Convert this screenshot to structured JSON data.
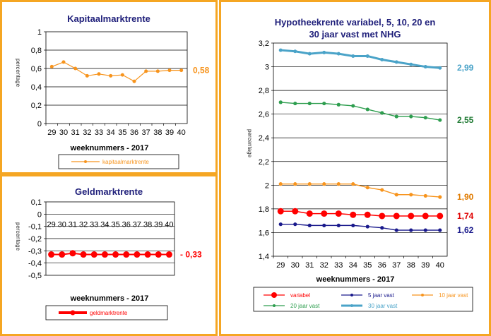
{
  "chart_data": [
    {
      "id": "kap",
      "type": "line",
      "title": "Kapitaalmarktrente",
      "ylabel": "percentage",
      "xlabel": "weeknummers - 2017",
      "categories": [
        "29",
        "30",
        "31",
        "32",
        "33",
        "34",
        "35",
        "36",
        "37",
        "38",
        "39",
        "40"
      ],
      "ylim": [
        0,
        1
      ],
      "yticks": [
        "0",
        "0,2",
        "0,4",
        "0,6",
        "0,8",
        "1"
      ],
      "grid": true,
      "series": [
        {
          "name": "kapitaalmarktrente",
          "color": "#f7941d",
          "values": [
            0.62,
            0.67,
            0.6,
            0.52,
            0.54,
            0.52,
            0.53,
            0.46,
            0.57,
            0.57,
            0.58,
            0.58
          ],
          "end_label": "0,58"
        }
      ]
    },
    {
      "id": "geld",
      "type": "line",
      "title": "Geldmarktrente",
      "ylabel": "percentage",
      "xlabel": "weeknummers - 2017",
      "categories": [
        "29",
        "30",
        "31",
        "32",
        "33",
        "34",
        "35",
        "36",
        "37",
        "38",
        "39",
        "40"
      ],
      "ylim": [
        -0.5,
        0.1
      ],
      "yticks": [
        "-0,5",
        "-0,4",
        "-0,3",
        "-0,2",
        "-0,1",
        "0",
        "0,1"
      ],
      "grid": true,
      "series": [
        {
          "name": "geldmarktrente",
          "color": "#ff0000",
          "values": [
            -0.33,
            -0.33,
            -0.32,
            -0.33,
            -0.33,
            -0.33,
            -0.33,
            -0.33,
            -0.33,
            -0.33,
            -0.33,
            -0.33
          ],
          "end_label": "- 0,33"
        }
      ]
    },
    {
      "id": "hyp",
      "type": "line",
      "title": "Hypotheekrente variabel, 5, 10, 20 en",
      "title2": "30 jaar vast met NHG",
      "ylabel": "percentage",
      "xlabel": "weeknummers - 2017",
      "categories": [
        "29",
        "30",
        "31",
        "32",
        "33",
        "34",
        "35",
        "36",
        "37",
        "38",
        "39",
        "40"
      ],
      "ylim": [
        1.4,
        3.2
      ],
      "yticks": [
        "1,4",
        "1,6",
        "1,8",
        "2",
        "2,2",
        "2,4",
        "2,6",
        "2,8",
        "3",
        "3,2"
      ],
      "grid": true,
      "series": [
        {
          "name": "variabel",
          "color": "#ff0000",
          "values": [
            1.78,
            1.78,
            1.76,
            1.76,
            1.76,
            1.75,
            1.75,
            1.74,
            1.74,
            1.74,
            1.74,
            1.74
          ],
          "end_label": "1,74",
          "label_color": "#e00000"
        },
        {
          "name": "5 jaar vast",
          "color": "#1a1a8c",
          "values": [
            1.67,
            1.67,
            1.66,
            1.66,
            1.66,
            1.66,
            1.65,
            1.64,
            1.62,
            1.62,
            1.62,
            1.62
          ],
          "end_label": "1,62",
          "label_color": "#1a1a8c"
        },
        {
          "name": "10 jaar vast",
          "color": "#f7941d",
          "values": [
            2.01,
            2.01,
            2.01,
            2.01,
            2.01,
            2.01,
            1.98,
            1.96,
            1.92,
            1.92,
            1.91,
            1.9
          ],
          "end_label": "1,90",
          "label_color": "#e07b00"
        },
        {
          "name": "20 jaar vast",
          "color": "#2e9e4f",
          "values": [
            2.7,
            2.69,
            2.69,
            2.69,
            2.68,
            2.67,
            2.64,
            2.61,
            2.58,
            2.58,
            2.57,
            2.55
          ],
          "end_label": "2,55",
          "label_color": "#1f7a33"
        },
        {
          "name": "30 jaar vast",
          "color": "#4aa3c8",
          "values": [
            3.14,
            3.13,
            3.11,
            3.12,
            3.11,
            3.09,
            3.09,
            3.06,
            3.04,
            3.02,
            3.0,
            2.99
          ],
          "end_label": "2,99",
          "label_color": "#4aa3c8"
        }
      ]
    }
  ]
}
